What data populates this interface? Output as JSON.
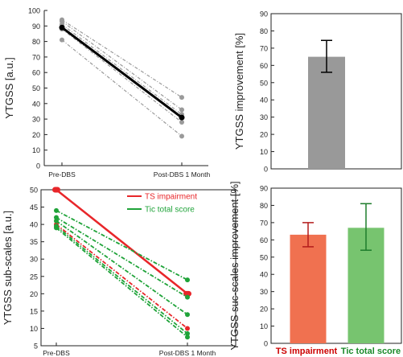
{
  "chart_data": [
    {
      "type": "line",
      "ylabel": "YTGSS [a.u.]",
      "categories": [
        "Pre-DBS",
        "Post-DBS 1 Month"
      ],
      "ylim": [
        0,
        100
      ],
      "yticks": [
        0,
        10,
        20,
        30,
        40,
        50,
        60,
        70,
        80,
        90,
        100
      ],
      "series_individual": [
        {
          "values": [
            94,
            44
          ]
        },
        {
          "values": [
            93,
            36
          ]
        },
        {
          "values": [
            91,
            33
          ]
        },
        {
          "values": [
            88,
            28
          ]
        },
        {
          "values": [
            81,
            19
          ]
        }
      ],
      "series_mean": {
        "values": [
          89,
          31
        ]
      },
      "colors": {
        "individual": "#9a9a9a",
        "mean": "#000000"
      }
    },
    {
      "type": "bar",
      "ylabel": "YTGSS improvement [%]",
      "categories": [
        ""
      ],
      "values": [
        65
      ],
      "errors": [
        [
          56,
          74.5
        ]
      ],
      "ylim": [
        0,
        90
      ],
      "yticks": [
        0,
        10,
        20,
        30,
        40,
        50,
        60,
        70,
        80,
        90
      ],
      "colors": {
        "bar": "#999999",
        "error": "#000000"
      }
    },
    {
      "type": "line",
      "ylabel": "YTGSS sub-scales [a.u.]",
      "categories": [
        "Pre-DBS",
        "Post-DBS 1 Month"
      ],
      "ylim": [
        5,
        50
      ],
      "yticks": [
        5,
        10,
        15,
        20,
        25,
        30,
        35,
        40,
        45,
        50
      ],
      "legend": [
        "TS impairment",
        "Tic total score"
      ],
      "legend_position": "top-right",
      "series": [
        {
          "name": "TS impairment",
          "color": "#e8262a",
          "style": "solid",
          "values": [
            50,
            20
          ]
        },
        {
          "name": "TS impairment",
          "color": "#e8262a",
          "style": "dashed",
          "values": [
            40,
            10
          ]
        },
        {
          "name": "Tic total score",
          "color": "#1fa339",
          "style": "dashed",
          "values": [
            44,
            24
          ]
        },
        {
          "name": "Tic total score",
          "color": "#1fa339",
          "style": "dashed",
          "values": [
            42,
            19
          ]
        },
        {
          "name": "Tic total score",
          "color": "#1fa339",
          "style": "dashed",
          "values": [
            41,
            14
          ]
        },
        {
          "name": "Tic total score",
          "color": "#1fa339",
          "style": "dashed",
          "values": [
            39.5,
            8.5
          ]
        },
        {
          "name": "Tic total score",
          "color": "#1fa339",
          "style": "dashed",
          "values": [
            39,
            7.5
          ]
        }
      ]
    },
    {
      "type": "bar",
      "ylabel": "YTGSS suc-scales improvement [%]",
      "categories": [
        "TS impairment",
        "Tic total score"
      ],
      "values": [
        63,
        67
      ],
      "errors": [
        [
          56,
          70
        ],
        [
          54,
          81
        ]
      ],
      "ylim": [
        0,
        90
      ],
      "yticks": [
        0,
        10,
        20,
        30,
        40,
        50,
        60,
        70,
        80,
        90
      ],
      "colors": {
        "bars": [
          "#f07150",
          "#77c46f"
        ],
        "errors": [
          "#b31b1b",
          "#1e7d2c"
        ],
        "labels": [
          "#cc0000",
          "#1a8a2a"
        ]
      }
    }
  ]
}
